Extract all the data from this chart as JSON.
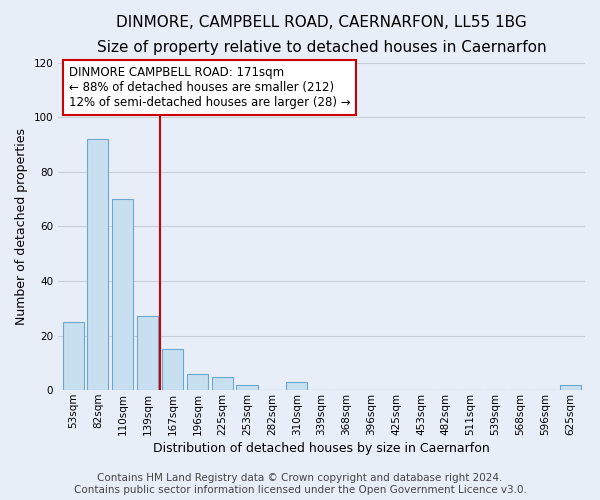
{
  "title": "DINMORE, CAMPBELL ROAD, CAERNARFON, LL55 1BG",
  "subtitle": "Size of property relative to detached houses in Caernarfon",
  "xlabel": "Distribution of detached houses by size in Caernarfon",
  "ylabel": "Number of detached properties",
  "bar_labels": [
    "53sqm",
    "82sqm",
    "110sqm",
    "139sqm",
    "167sqm",
    "196sqm",
    "225sqm",
    "253sqm",
    "282sqm",
    "310sqm",
    "339sqm",
    "368sqm",
    "396sqm",
    "425sqm",
    "453sqm",
    "482sqm",
    "511sqm",
    "539sqm",
    "568sqm",
    "596sqm",
    "625sqm"
  ],
  "bar_values": [
    25,
    92,
    70,
    27,
    15,
    6,
    5,
    2,
    0,
    3,
    0,
    0,
    0,
    0,
    0,
    0,
    0,
    0,
    0,
    0,
    2
  ],
  "bar_fill_color": "#c8dff0",
  "bar_edge_color": "#6aa8d0",
  "vline_x_index": 4,
  "vline_color": "#cc0000",
  "annotation_text": "DINMORE CAMPBELL ROAD: 171sqm\n← 88% of detached houses are smaller (212)\n12% of semi-detached houses are larger (28) →",
  "annotation_box_color": "#ffffff",
  "annotation_box_edge": "#cc0000",
  "ylim": [
    0,
    120
  ],
  "yticks": [
    0,
    20,
    40,
    60,
    80,
    100,
    120
  ],
  "footer_line1": "Contains HM Land Registry data © Crown copyright and database right 2024.",
  "footer_line2": "Contains public sector information licensed under the Open Government Licence v3.0.",
  "background_color": "#e8eef8",
  "grid_color": "#c8cfd8",
  "title_fontsize": 11,
  "subtitle_fontsize": 9.5,
  "xlabel_fontsize": 9,
  "ylabel_fontsize": 9,
  "tick_fontsize": 7.5,
  "annotation_fontsize": 8.5,
  "footer_fontsize": 7.5
}
